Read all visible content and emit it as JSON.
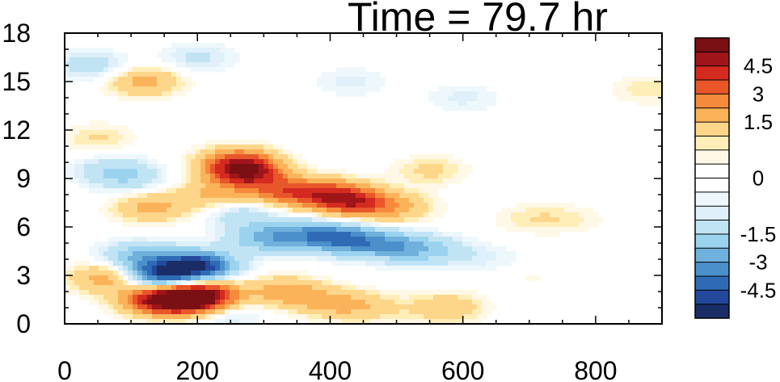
{
  "chart_data": {
    "type": "heatmap",
    "title": "Time = 79.7 hr",
    "xlabel": "",
    "ylabel": "",
    "xlim": [
      0,
      900
    ],
    "ylim": [
      0,
      18
    ],
    "x_ticks": [
      "0",
      "200",
      "400",
      "600",
      "800"
    ],
    "y_ticks": [
      "0",
      "3",
      "6",
      "9",
      "12",
      "15",
      "18"
    ],
    "colorbar": {
      "levels": [
        -5.25,
        -4.5,
        -3.75,
        -3,
        -2.25,
        -1.5,
        -0.75,
        -0.5,
        -0.25,
        0,
        0.25,
        0.5,
        0.75,
        1.5,
        2.25,
        3,
        3.75,
        4.5,
        5.25
      ],
      "tick_labels": [
        "4.5",
        "3",
        "1.5",
        "0",
        "-1.5",
        "-3",
        "-4.5"
      ],
      "colors": [
        "#1a2d66",
        "#24489b",
        "#2f6bb5",
        "#4b8fcb",
        "#6fb0dc",
        "#9bd3ef",
        "#c1e4f4",
        "#dff0fa",
        "#eef8fc",
        "#ffffff",
        "#ffffff",
        "#fff8e6",
        "#ffeeb8",
        "#fdd68a",
        "#fbb35a",
        "#f58a3c",
        "#e8562a",
        "#d42a20",
        "#a0151a",
        "#7a1014"
      ]
    },
    "features": [
      {
        "x": 140,
        "y": 3.0,
        "v": -4.6
      },
      {
        "x": 200,
        "y": 3.6,
        "v": -5.2
      },
      {
        "x": 110,
        "y": 4.2,
        "v": -2.0
      },
      {
        "x": 140,
        "y": 1.5,
        "v": 4.2
      },
      {
        "x": 190,
        "y": 1.5,
        "v": 4.6
      },
      {
        "x": 210,
        "y": 1.8,
        "v": 3.0
      },
      {
        "x": 275,
        "y": 9.3,
        "v": 4.0
      },
      {
        "x": 260,
        "y": 10.0,
        "v": 3.2
      },
      {
        "x": 330,
        "y": 8.2,
        "v": 2.8
      },
      {
        "x": 400,
        "y": 8.0,
        "v": 3.2
      },
      {
        "x": 440,
        "y": 7.5,
        "v": 3.0
      },
      {
        "x": 500,
        "y": 7.2,
        "v": 1.5
      },
      {
        "x": 550,
        "y": 9.5,
        "v": 0.9
      },
      {
        "x": 130,
        "y": 7.2,
        "v": 1.8
      },
      {
        "x": 220,
        "y": 8.0,
        "v": 1.4
      },
      {
        "x": 100,
        "y": 9.0,
        "v": -1.0
      },
      {
        "x": 300,
        "y": 5.3,
        "v": -2.2
      },
      {
        "x": 370,
        "y": 5.5,
        "v": -2.6
      },
      {
        "x": 430,
        "y": 5.2,
        "v": -3.2
      },
      {
        "x": 500,
        "y": 4.8,
        "v": -2.4
      },
      {
        "x": 560,
        "y": 4.5,
        "v": -1.2
      },
      {
        "x": 270,
        "y": 6.8,
        "v": -1.2
      },
      {
        "x": 330,
        "y": 2.0,
        "v": 2.0
      },
      {
        "x": 400,
        "y": 1.3,
        "v": 1.6
      },
      {
        "x": 460,
        "y": 1.0,
        "v": 1.0
      },
      {
        "x": 575,
        "y": 1.0,
        "v": 1.4
      },
      {
        "x": 60,
        "y": 2.8,
        "v": 1.6
      },
      {
        "x": 95,
        "y": 3.0,
        "v": 1.0
      },
      {
        "x": 120,
        "y": 15.0,
        "v": 1.8
      },
      {
        "x": 40,
        "y": 16.0,
        "v": -1.2
      },
      {
        "x": 200,
        "y": 16.5,
        "v": -0.9
      },
      {
        "x": 50,
        "y": 11.5,
        "v": 0.8
      },
      {
        "x": 70,
        "y": 9.5,
        "v": -1.2
      },
      {
        "x": 700,
        "y": 6.5,
        "v": 0.6
      },
      {
        "x": 760,
        "y": 6.5,
        "v": 0.5
      },
      {
        "x": 430,
        "y": 15.0,
        "v": -0.6
      },
      {
        "x": 600,
        "y": 14.0,
        "v": -0.6
      },
      {
        "x": 640,
        "y": 4.0,
        "v": -0.5
      },
      {
        "x": 700,
        "y": 3.0,
        "v": 0.3
      },
      {
        "x": 880,
        "y": 14.5,
        "v": 0.7
      },
      {
        "x": 240,
        "y": 0.6,
        "v": -1.0
      }
    ]
  }
}
